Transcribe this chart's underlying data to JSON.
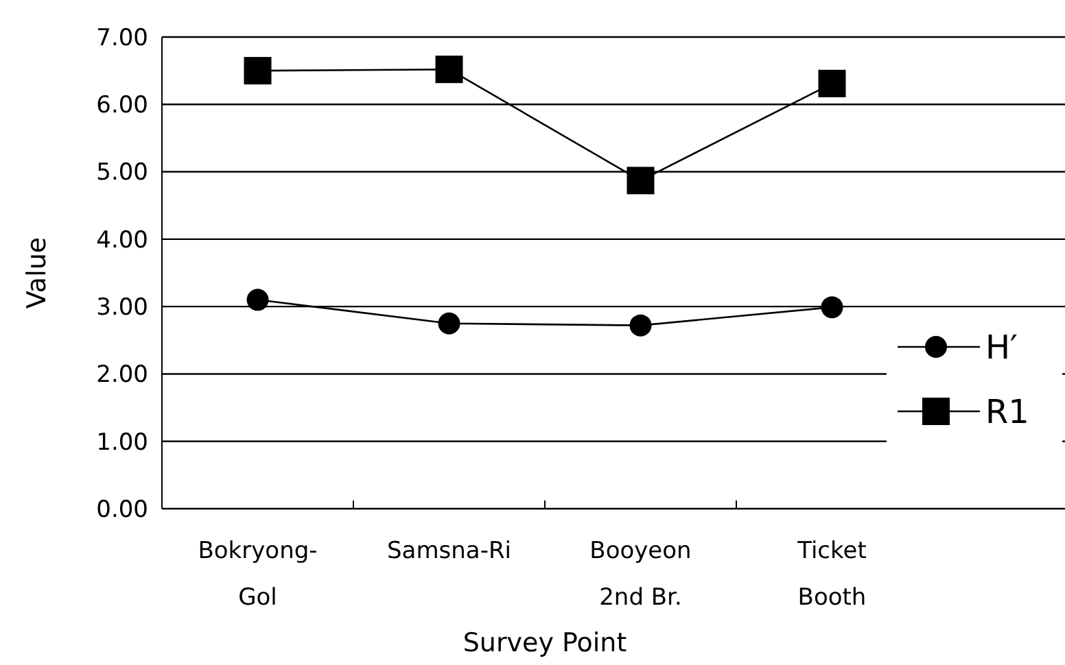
{
  "chart_data": {
    "type": "line",
    "xlabel": "Survey Point",
    "ylabel": "Value",
    "categories": [
      "Bokryong-\nGol",
      "Samsna-Ri",
      "Booyeon\n2nd Br.",
      "Ticket\nBooth"
    ],
    "series": [
      {
        "name": "H′",
        "color": "#000000",
        "marker": "circle",
        "values": [
          3.1,
          2.75,
          2.72,
          2.99
        ]
      },
      {
        "name": "R1",
        "color": "#000000",
        "marker": "square",
        "values": [
          6.5,
          6.52,
          4.87,
          6.31
        ]
      }
    ],
    "ylim": [
      0,
      7
    ],
    "yticks": [
      {
        "value": 0,
        "label": "0.00"
      },
      {
        "value": 1,
        "label": "1.00"
      },
      {
        "value": 2,
        "label": "2.00"
      },
      {
        "value": 3,
        "label": "3.00"
      },
      {
        "value": 4,
        "label": "4.00"
      },
      {
        "value": 5,
        "label": "5.00"
      },
      {
        "value": 6,
        "label": "6.00"
      },
      {
        "value": 7,
        "label": "7.00"
      }
    ],
    "grid": "y",
    "legend": "right",
    "line_style": "solid"
  }
}
